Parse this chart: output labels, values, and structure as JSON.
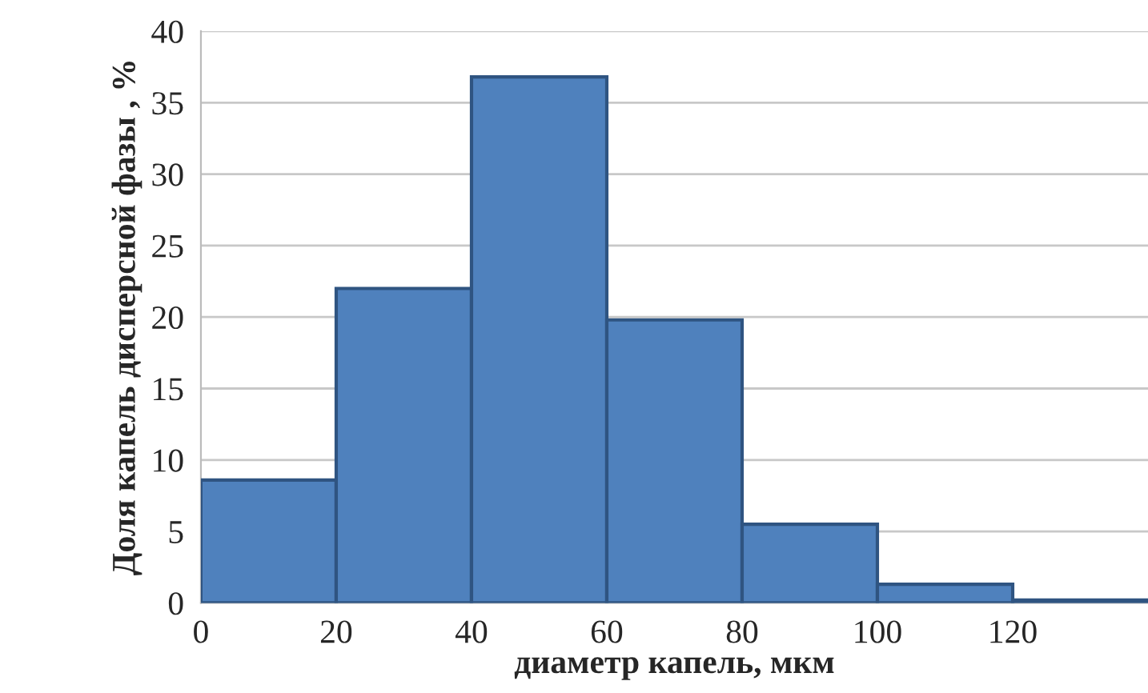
{
  "chart_data": {
    "type": "histogram",
    "xlabel": "диаметр капель, мкм",
    "ylabel": "Доля капель дисперсной фазы , %",
    "bins": [
      0,
      20,
      40,
      60,
      80,
      100,
      120,
      140
    ],
    "values": [
      8.6,
      22,
      36.8,
      19.8,
      5.5,
      1.3,
      0.2
    ],
    "color": "#4f81bd",
    "xlim": [
      0,
      140
    ],
    "xticks": [
      0,
      20,
      40,
      60,
      80,
      100,
      120
    ],
    "ylim": [
      0,
      40
    ],
    "yticks": [
      0,
      5,
      10,
      15,
      20,
      25,
      30,
      35,
      40
    ],
    "grid": "y"
  }
}
